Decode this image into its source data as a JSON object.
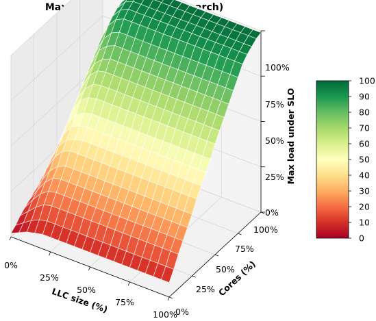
{
  "chart_data": {
    "type": "surface",
    "title": "Max load under SLO (websearch)",
    "xlabel": "LLC size (%)",
    "ylabel": "Cores (%)",
    "zlabel": "Max load under SLO",
    "x_ticks": [
      "0%",
      "25%",
      "50%",
      "75%",
      "100%"
    ],
    "y_ticks": [
      "0%",
      "25%",
      "50%",
      "75%",
      "100%"
    ],
    "z_ticks": [
      "0%",
      "25%",
      "50%",
      "75%",
      "100%"
    ],
    "xlim": [
      0,
      100
    ],
    "ylim": [
      0,
      100
    ],
    "zlim": [
      0,
      100
    ],
    "colormap": "RdYlGn",
    "colorbar_ticks": [
      "0",
      "10",
      "20",
      "30",
      "40",
      "50",
      "60",
      "70",
      "80",
      "90",
      "100"
    ],
    "colorbar_range": [
      0,
      100
    ],
    "grid": true,
    "x": [
      0,
      5,
      10,
      15,
      20,
      25,
      30,
      35,
      40,
      45,
      50,
      55,
      60,
      65,
      70,
      75,
      80,
      85,
      90,
      95,
      100
    ],
    "y": [
      0,
      5,
      10,
      15,
      20,
      25,
      30,
      35,
      40,
      45,
      50,
      55,
      60,
      65,
      70,
      75,
      80,
      85,
      90,
      95,
      100
    ],
    "z_by_core_row": [
      [
        2,
        4,
        6,
        7,
        8,
        8,
        8,
        8,
        8,
        8,
        8,
        8,
        8,
        8,
        8,
        8,
        8,
        8,
        8,
        8,
        8
      ],
      [
        4,
        7,
        10,
        12,
        13,
        13,
        13,
        13,
        13,
        13,
        13,
        13,
        13,
        13,
        13,
        13,
        13,
        13,
        13,
        13,
        13
      ],
      [
        7,
        11,
        15,
        18,
        19,
        19,
        19,
        19,
        19,
        19,
        19,
        19,
        19,
        19,
        19,
        19,
        19,
        19,
        19,
        19,
        19
      ],
      [
        9,
        15,
        20,
        23,
        24,
        24,
        24,
        24,
        24,
        24,
        24,
        24,
        24,
        24,
        24,
        24,
        24,
        24,
        24,
        24,
        24
      ],
      [
        11,
        18,
        24,
        28,
        29,
        29,
        29,
        29,
        29,
        29,
        29,
        29,
        29,
        29,
        29,
        29,
        29,
        29,
        29,
        29,
        29
      ],
      [
        13,
        21,
        28,
        32,
        34,
        34,
        34,
        34,
        34,
        34,
        34,
        34,
        34,
        34,
        34,
        34,
        34,
        34,
        34,
        34,
        34
      ],
      [
        15,
        25,
        33,
        38,
        40,
        40,
        40,
        40,
        40,
        40,
        40,
        40,
        40,
        40,
        40,
        40,
        40,
        40,
        40,
        40,
        40
      ],
      [
        17,
        28,
        37,
        42,
        44,
        45,
        45,
        45,
        45,
        45,
        45,
        45,
        45,
        45,
        45,
        45,
        45,
        45,
        45,
        45,
        45
      ],
      [
        19,
        31,
        41,
        47,
        49,
        50,
        50,
        50,
        50,
        50,
        50,
        50,
        50,
        50,
        50,
        50,
        50,
        50,
        50,
        50,
        50
      ],
      [
        21,
        34,
        45,
        51,
        54,
        55,
        55,
        55,
        55,
        55,
        55,
        55,
        55,
        55,
        55,
        55,
        55,
        55,
        55,
        55,
        55
      ],
      [
        23,
        38,
        50,
        57,
        60,
        61,
        61,
        61,
        61,
        61,
        61,
        61,
        61,
        61,
        61,
        61,
        61,
        61,
        61,
        61,
        61
      ],
      [
        25,
        41,
        54,
        61,
        65,
        66,
        66,
        66,
        66,
        66,
        66,
        66,
        66,
        66,
        66,
        66,
        66,
        66,
        66,
        66,
        66
      ],
      [
        27,
        44,
        58,
        66,
        70,
        71,
        71,
        71,
        71,
        71,
        71,
        71,
        71,
        71,
        71,
        71,
        71,
        71,
        71,
        71,
        71
      ],
      [
        29,
        47,
        62,
        70,
        74,
        76,
        76,
        76,
        76,
        76,
        76,
        76,
        76,
        76,
        76,
        76,
        76,
        76,
        76,
        76,
        76
      ],
      [
        31,
        50,
        66,
        75,
        79,
        81,
        81,
        81,
        81,
        81,
        81,
        81,
        81,
        81,
        81,
        81,
        81,
        81,
        81,
        81,
        81
      ],
      [
        32,
        53,
        70,
        79,
        84,
        86,
        86,
        86,
        86,
        86,
        86,
        86,
        86,
        86,
        86,
        86,
        86,
        86,
        86,
        86,
        86
      ],
      [
        34,
        56,
        74,
        84,
        89,
        91,
        91,
        91,
        91,
        91,
        91,
        91,
        91,
        91,
        91,
        91,
        91,
        91,
        91,
        91,
        91
      ],
      [
        35,
        58,
        76,
        87,
        92,
        94,
        94,
        94,
        94,
        94,
        94,
        94,
        94,
        94,
        94,
        94,
        94,
        94,
        94,
        94,
        94
      ],
      [
        36,
        59,
        78,
        89,
        94,
        96,
        96,
        96,
        96,
        96,
        96,
        96,
        96,
        96,
        96,
        96,
        96,
        96,
        96,
        96,
        96
      ],
      [
        37,
        60,
        79,
        90,
        95,
        97,
        98,
        98,
        98,
        98,
        98,
        98,
        98,
        98,
        98,
        98,
        98,
        98,
        98,
        98,
        98
      ],
      [
        37,
        61,
        80,
        91,
        96,
        98,
        99,
        99,
        99,
        99,
        99,
        99,
        99,
        99,
        99,
        99,
        99,
        99,
        99,
        99,
        99
      ]
    ]
  }
}
